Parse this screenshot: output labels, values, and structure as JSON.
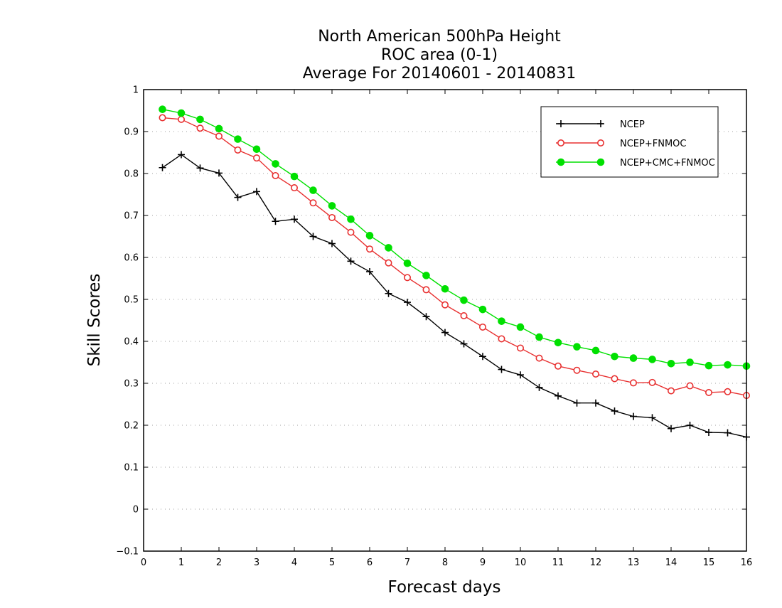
{
  "chart_data": {
    "type": "line",
    "title": [
      "North American 500hPa Height",
      "ROC area (0-1)",
      "Average For 20140601 - 20140831"
    ],
    "xlabel": "Forecast days",
    "ylabel": "Skill Scores",
    "xlim": [
      0,
      16
    ],
    "ylim": [
      -0.1,
      1
    ],
    "xticks": [
      0,
      1,
      2,
      3,
      4,
      5,
      6,
      7,
      8,
      9,
      10,
      11,
      12,
      13,
      14,
      15,
      16
    ],
    "yticks": [
      -0.1,
      0,
      0.1,
      0.2,
      0.3,
      0.4,
      0.5,
      0.6,
      0.7,
      0.8,
      0.9,
      1
    ],
    "ytick_labels": [
      "−0.1",
      "0",
      "0.1",
      "0.2",
      "0.3",
      "0.4",
      "0.5",
      "0.6",
      "0.7",
      "0.8",
      "0.9",
      "1"
    ],
    "grid": "horizontal dotted",
    "legend_position": "top-right",
    "x": [
      0.5,
      1,
      1.5,
      2,
      2.5,
      3,
      3.5,
      4,
      4.5,
      5,
      5.5,
      6,
      6.5,
      7,
      7.5,
      8,
      8.5,
      9,
      9.5,
      10,
      10.5,
      11,
      11.5,
      12,
      12.5,
      13,
      13.5,
      14,
      14.5,
      15,
      15.5,
      16
    ],
    "series": [
      {
        "name": "NCEP",
        "color": "#000000",
        "marker": "plus",
        "values": [
          0.814,
          0.845,
          0.813,
          0.801,
          0.743,
          0.757,
          0.686,
          0.691,
          0.65,
          0.633,
          0.591,
          0.566,
          0.514,
          0.493,
          0.459,
          0.421,
          0.394,
          0.364,
          0.333,
          0.32,
          0.29,
          0.27,
          0.253,
          0.253,
          0.234,
          0.221,
          0.218,
          0.192,
          0.2,
          0.183,
          0.182,
          0.172
        ]
      },
      {
        "name": "NCEP+FNMOC",
        "color": "#e83030",
        "marker": "open-circle",
        "values": [
          0.933,
          0.929,
          0.908,
          0.889,
          0.856,
          0.837,
          0.795,
          0.766,
          0.73,
          0.695,
          0.66,
          0.62,
          0.587,
          0.552,
          0.523,
          0.487,
          0.461,
          0.434,
          0.406,
          0.384,
          0.36,
          0.341,
          0.331,
          0.322,
          0.311,
          0.301,
          0.302,
          0.282,
          0.294,
          0.278,
          0.28,
          0.271
        ]
      },
      {
        "name": "NCEP+CMC+FNMOC",
        "color": "#00e000",
        "marker": "filled-circle",
        "values": [
          0.953,
          0.944,
          0.929,
          0.907,
          0.882,
          0.858,
          0.823,
          0.793,
          0.76,
          0.723,
          0.691,
          0.652,
          0.623,
          0.586,
          0.557,
          0.525,
          0.498,
          0.476,
          0.448,
          0.434,
          0.41,
          0.397,
          0.387,
          0.378,
          0.364,
          0.36,
          0.357,
          0.347,
          0.35,
          0.342,
          0.344,
          0.341
        ]
      }
    ]
  }
}
